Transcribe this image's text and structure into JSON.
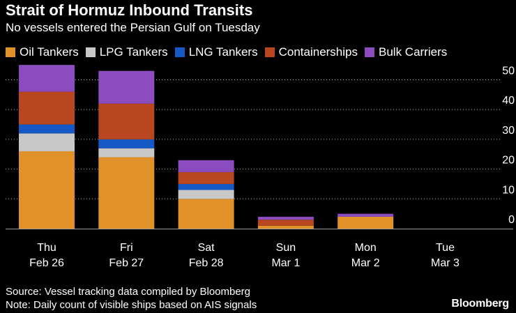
{
  "chart_data": {
    "type": "bar",
    "stacked": true,
    "title": "Strait of Hormuz Inbound Transits",
    "subtitle": "No vessels entered the Persian Gulf on Tuesday",
    "categories": [
      {
        "day": "Thu",
        "date": "Feb 26"
      },
      {
        "day": "Fri",
        "date": "Feb 27"
      },
      {
        "day": "Sat",
        "date": "Feb 28"
      },
      {
        "day": "Sun",
        "date": "Mar 1"
      },
      {
        "day": "Mon",
        "date": "Mar 2"
      },
      {
        "day": "Tue",
        "date": "Mar 3"
      }
    ],
    "series": [
      {
        "name": "Oil Tankers",
        "color": "#e1912a",
        "values": [
          26,
          24,
          10,
          1,
          4,
          0
        ]
      },
      {
        "name": "LPG Tankers",
        "color": "#c8c8c8",
        "values": [
          6,
          3,
          3,
          0,
          0,
          0
        ]
      },
      {
        "name": "LNG Tankers",
        "color": "#1559c7",
        "values": [
          3,
          3,
          2,
          0,
          0,
          0
        ]
      },
      {
        "name": "Containerships",
        "color": "#b8461f",
        "values": [
          11,
          12,
          4,
          2,
          0,
          0
        ]
      },
      {
        "name": "Bulk Carriers",
        "color": "#8b4cbf",
        "values": [
          9,
          11,
          4,
          1,
          1,
          0
        ]
      }
    ],
    "yticks": [
      0,
      10,
      20,
      30,
      40,
      50
    ],
    "ylim": [
      0,
      55
    ],
    "grid": true,
    "y_axis_side": "right",
    "legend_position": "top"
  },
  "footer": {
    "source": "Source: Vessel tracking data compiled by Bloomberg",
    "note": "Note: Daily count of visible ships based on AIS signals"
  },
  "brand": "Bloomberg"
}
